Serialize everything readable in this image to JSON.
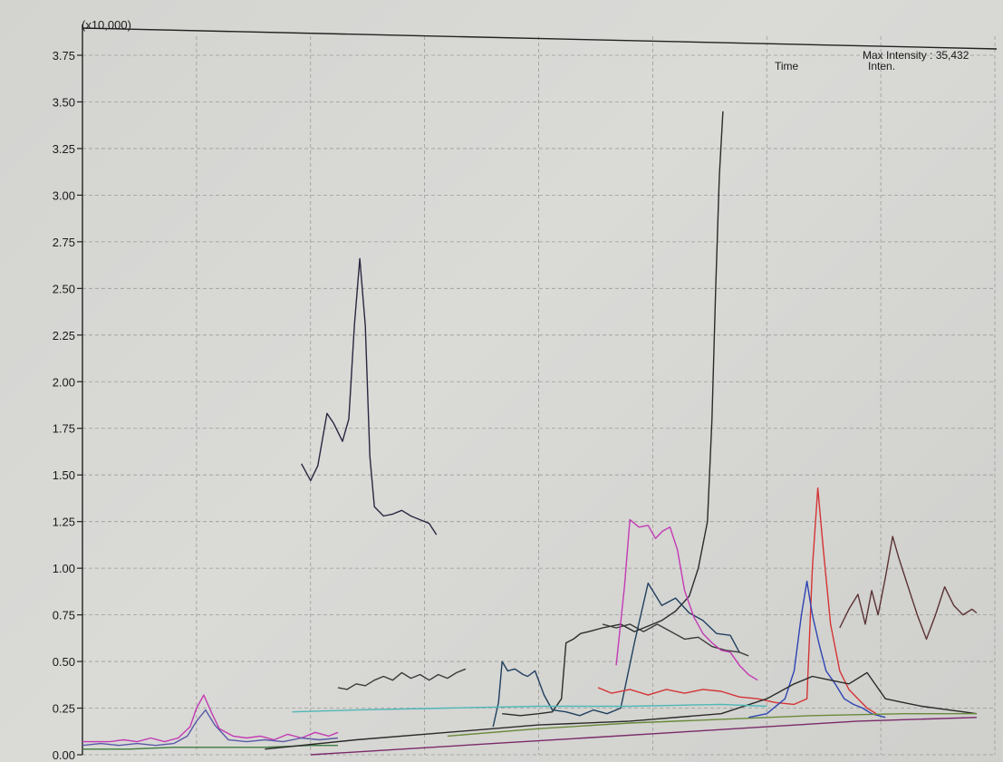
{
  "header": {
    "scale_label": "(x10,000)",
    "max_intensity": "Max Intensity : 35,432",
    "col_time": "Time",
    "col_inten": "Inten."
  },
  "chart_data": {
    "type": "line",
    "title": "",
    "xlabel": "",
    "ylabel": "",
    "y_multiplier": "(x10,000)",
    "ylim": [
      0,
      3.8
    ],
    "xlim": [
      0,
      100
    ],
    "grid": true,
    "y_ticks": [
      "0.00",
      "0.25",
      "0.50",
      "0.75",
      "1.00",
      "1.25",
      "1.50",
      "1.75",
      "2.00",
      "2.25",
      "2.50",
      "2.75",
      "3.00",
      "3.25",
      "3.50",
      "3.75"
    ],
    "series": [
      {
        "color": "#2b2640",
        "x": [
          24.0,
          25.0,
          25.8,
          26.8,
          27.5,
          28.5,
          29.2,
          29.8,
          30.4,
          31.0,
          31.5,
          32.0,
          33.0,
          34.0,
          35.0,
          36.0,
          37.0,
          38.0,
          38.8
        ],
        "values": [
          1.56,
          1.47,
          1.55,
          1.83,
          1.78,
          1.68,
          1.8,
          2.3,
          2.66,
          2.3,
          1.6,
          1.33,
          1.28,
          1.29,
          1.31,
          1.28,
          1.26,
          1.24,
          1.18
        ]
      },
      {
        "color": "#3a3a3a",
        "x": [
          28.0,
          29.0,
          30.0,
          31.0,
          32.0,
          33.0,
          34.0,
          35.0,
          36.0,
          37.0,
          38.0,
          39.0,
          40.0,
          41.0,
          42.0
        ],
        "values": [
          0.36,
          0.35,
          0.38,
          0.37,
          0.4,
          0.42,
          0.4,
          0.44,
          0.41,
          0.43,
          0.4,
          0.43,
          0.41,
          0.44,
          0.46
        ]
      },
      {
        "color": "#2b2b2b",
        "x": [
          46.0,
          48.0,
          50.0,
          51.5,
          52.5,
          53.0,
          53.8,
          54.6,
          55.5,
          57.0,
          59.0,
          60.5,
          62.0,
          63.5,
          65.0,
          66.5,
          67.5,
          68.5,
          69.0,
          69.4,
          69.8,
          70.2
        ],
        "values": [
          0.22,
          0.21,
          0.22,
          0.23,
          0.3,
          0.6,
          0.62,
          0.65,
          0.66,
          0.68,
          0.7,
          0.66,
          0.69,
          0.72,
          0.77,
          0.85,
          1.0,
          1.25,
          1.8,
          2.5,
          3.1,
          3.45
        ]
      },
      {
        "color": "#1f3f5e",
        "x": [
          45.0,
          45.6,
          46.0,
          46.6,
          47.4,
          48.3,
          48.8,
          49.6,
          50.6,
          51.5,
          53.0,
          54.5,
          56.0,
          57.5,
          59.0,
          60.5,
          62.0,
          63.5,
          65.0,
          66.5,
          68.0,
          69.5,
          71.0,
          72.0
        ],
        "values": [
          0.15,
          0.28,
          0.5,
          0.45,
          0.46,
          0.43,
          0.42,
          0.45,
          0.32,
          0.24,
          0.23,
          0.21,
          0.24,
          0.22,
          0.25,
          0.6,
          0.92,
          0.8,
          0.84,
          0.76,
          0.72,
          0.65,
          0.64,
          0.55
        ]
      },
      {
        "color": "#3b3b3b",
        "x": [
          57.0,
          58.5,
          60.0,
          61.5,
          63.0,
          64.5,
          66.0,
          67.5,
          69.0,
          70.5,
          72.0,
          73.0
        ],
        "values": [
          0.7,
          0.68,
          0.7,
          0.66,
          0.7,
          0.66,
          0.62,
          0.63,
          0.58,
          0.56,
          0.55,
          0.53
        ]
      },
      {
        "color": "#c33ab3",
        "x": [
          0.0,
          1.5,
          3.0,
          4.5,
          6.0,
          7.5,
          9.0,
          10.5,
          11.8,
          12.5,
          13.3,
          14.2,
          15.0,
          16.5,
          18.0,
          19.5,
          21.0,
          22.5,
          24.0,
          25.5,
          27.0,
          28.0
        ],
        "values": [
          0.07,
          0.07,
          0.07,
          0.08,
          0.07,
          0.09,
          0.07,
          0.09,
          0.15,
          0.25,
          0.32,
          0.22,
          0.14,
          0.1,
          0.09,
          0.1,
          0.08,
          0.11,
          0.09,
          0.12,
          0.1,
          0.12
        ]
      },
      {
        "color": "#5a5aa8",
        "x": [
          0.0,
          2.0,
          4.0,
          6.0,
          8.0,
          10.0,
          11.5,
          12.5,
          13.5,
          14.5,
          16.0,
          18.0,
          20.0,
          22.0,
          24.0,
          26.0,
          28.0
        ],
        "values": [
          0.05,
          0.06,
          0.05,
          0.06,
          0.05,
          0.06,
          0.1,
          0.18,
          0.24,
          0.16,
          0.08,
          0.07,
          0.08,
          0.07,
          0.09,
          0.08,
          0.09
        ]
      },
      {
        "color": "#3d7a3d",
        "x": [
          0.0,
          5.0,
          10.0,
          15.0,
          20.0,
          25.0,
          28.0
        ],
        "values": [
          0.03,
          0.03,
          0.04,
          0.04,
          0.04,
          0.05,
          0.05
        ]
      },
      {
        "color": "#c33ab3",
        "x": [
          58.5,
          59.4,
          60.0,
          61.0,
          62.0,
          62.8,
          63.6,
          64.4,
          65.2,
          66.0,
          67.0,
          68.0,
          69.0,
          70.0,
          71.0,
          72.0,
          73.0,
          74.0
        ],
        "values": [
          0.48,
          0.9,
          1.26,
          1.22,
          1.23,
          1.16,
          1.2,
          1.22,
          1.1,
          0.88,
          0.74,
          0.65,
          0.6,
          0.56,
          0.55,
          0.48,
          0.43,
          0.4
        ]
      },
      {
        "color": "#d43434",
        "x": [
          56.5,
          58.0,
          60.0,
          62.0,
          64.0,
          66.0,
          68.0,
          70.0,
          72.0,
          74.0,
          76.0,
          78.0,
          79.4,
          80.0,
          80.6,
          81.2,
          82.0,
          83.0,
          84.0,
          85.0,
          86.0,
          87.0
        ],
        "values": [
          0.36,
          0.33,
          0.35,
          0.32,
          0.35,
          0.33,
          0.35,
          0.34,
          0.31,
          0.3,
          0.28,
          0.27,
          0.3,
          1.0,
          1.43,
          1.1,
          0.7,
          0.45,
          0.35,
          0.3,
          0.25,
          0.22
        ]
      },
      {
        "color": "#2e44b3",
        "x": [
          73.0,
          75.0,
          77.0,
          78.0,
          78.8,
          79.4,
          80.0,
          80.8,
          81.5,
          82.5,
          83.5,
          84.5,
          85.5,
          86.5,
          88.0
        ],
        "values": [
          0.2,
          0.22,
          0.3,
          0.45,
          0.75,
          0.93,
          0.75,
          0.58,
          0.45,
          0.38,
          0.3,
          0.27,
          0.25,
          0.22,
          0.2
        ]
      },
      {
        "color": "#5a3232",
        "x": [
          83.0,
          84.0,
          85.0,
          85.8,
          86.5,
          87.2,
          88.0,
          88.8,
          89.5,
          90.5,
          91.5,
          92.5,
          93.5,
          94.5,
          95.5,
          96.5,
          97.5,
          98.0
        ],
        "values": [
          0.68,
          0.78,
          0.86,
          0.7,
          0.88,
          0.75,
          0.95,
          1.17,
          1.05,
          0.9,
          0.75,
          0.62,
          0.75,
          0.9,
          0.8,
          0.75,
          0.78,
          0.76
        ]
      },
      {
        "color": "#2a2a2a",
        "x": [
          20.0,
          30.0,
          40.0,
          50.0,
          60.0,
          70.0,
          75.0,
          78.0,
          80.0,
          82.0,
          84.0,
          86.0,
          88.0,
          90.0,
          92.0,
          95.0,
          98.0
        ],
        "values": [
          0.03,
          0.08,
          0.12,
          0.16,
          0.18,
          0.22,
          0.3,
          0.38,
          0.42,
          0.4,
          0.38,
          0.44,
          0.3,
          0.28,
          0.26,
          0.24,
          0.22
        ]
      },
      {
        "color": "#4fb8b8",
        "x": [
          23.0,
          30.0,
          40.0,
          50.0,
          60.0,
          70.0,
          75.0
        ],
        "values": [
          0.23,
          0.24,
          0.25,
          0.26,
          0.26,
          0.27,
          0.26
        ]
      },
      {
        "color": "#6a8a3a",
        "x": [
          40.0,
          50.0,
          60.0,
          70.0,
          80.0,
          90.0,
          98.0
        ],
        "values": [
          0.1,
          0.14,
          0.17,
          0.19,
          0.21,
          0.22,
          0.22
        ]
      },
      {
        "color": "#7a2a6a",
        "x": [
          25.0,
          35.0,
          45.0,
          55.0,
          65.0,
          75.0,
          85.0,
          98.0
        ],
        "values": [
          0.0,
          0.03,
          0.06,
          0.09,
          0.12,
          0.15,
          0.18,
          0.2
        ]
      }
    ]
  }
}
